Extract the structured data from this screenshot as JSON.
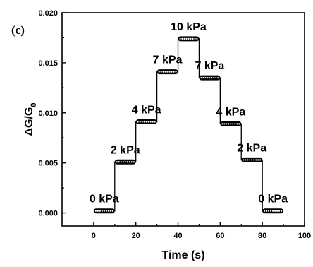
{
  "panel_label": "(c)",
  "chart_data": {
    "type": "line",
    "xlabel": "Time (s)",
    "ylabel_main": "ΔG/G",
    "ylabel_sub": "0",
    "xlim": [
      -15,
      100
    ],
    "ylim": [
      -0.0013,
      0.02
    ],
    "xticks": [
      "0",
      "20",
      "40",
      "60",
      "80",
      "100"
    ],
    "yticks": [
      "0.000",
      "0.005",
      "0.010",
      "0.015",
      "0.020"
    ],
    "grid": false,
    "color": "#000000",
    "steps": [
      {
        "label": "0 kPa",
        "x_start": 0,
        "x_end": 10,
        "y": 0.0002
      },
      {
        "label": "2 kPa",
        "x_start": 10,
        "x_end": 20,
        "y": 0.0051
      },
      {
        "label": "4 kPa",
        "x_start": 20,
        "x_end": 30,
        "y": 0.0091
      },
      {
        "label": "7 kPa",
        "x_start": 30,
        "x_end": 40,
        "y": 0.0141
      },
      {
        "label": "10 kPa",
        "x_start": 40,
        "x_end": 50,
        "y": 0.0174
      },
      {
        "label": "7 kPa",
        "x_start": 50,
        "x_end": 60,
        "y": 0.0135
      },
      {
        "label": "4 kPa",
        "x_start": 60,
        "x_end": 70,
        "y": 0.0089
      },
      {
        "label": "2 kPa",
        "x_start": 70,
        "x_end": 80,
        "y": 0.0053
      },
      {
        "label": "0 kPa",
        "x_start": 80,
        "x_end": 90,
        "y": 0.0002
      }
    ]
  }
}
